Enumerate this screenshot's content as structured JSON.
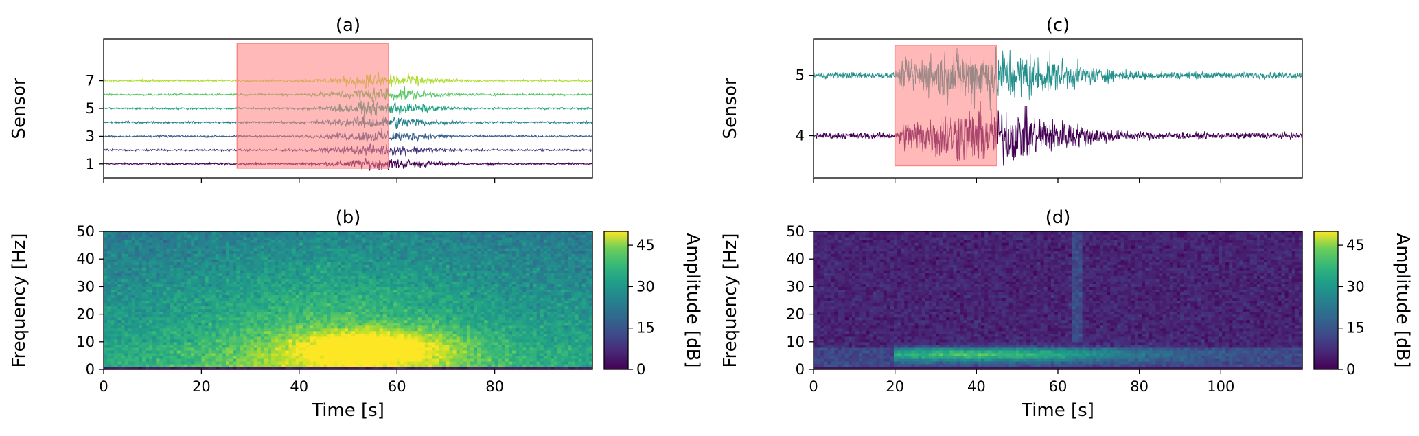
{
  "chart_data": [
    {
      "id": "a",
      "type": "line",
      "title": "(a)",
      "ylabel": "Sensor",
      "xlim": [
        0,
        100
      ],
      "ylim": [
        0,
        10
      ],
      "yticks": [
        1,
        3,
        5,
        7
      ],
      "xticks": [
        0,
        20,
        40,
        60,
        80
      ],
      "sensors": [
        1,
        2,
        3,
        4,
        5,
        6,
        7
      ],
      "highlight": {
        "x0": 27.3,
        "x1": 58.3,
        "y0": 0.7,
        "y1": 9.7,
        "color": "#ff8080"
      }
    },
    {
      "id": "b",
      "type": "heatmap",
      "title": "(b)",
      "xlabel": "Time [s]",
      "ylabel": "Frequency [Hz]",
      "xlim": [
        0,
        100
      ],
      "ylim": [
        0,
        50
      ],
      "xticks": [
        0,
        20,
        40,
        60,
        80
      ],
      "yticks": [
        0,
        10,
        20,
        30,
        40,
        50
      ],
      "colorbar": {
        "label": "Amplitude [dB]",
        "ticks": [
          0,
          15,
          30,
          45
        ],
        "range": [
          0,
          50
        ],
        "colormap": "viridis"
      }
    },
    {
      "id": "c",
      "type": "line",
      "title": "(c)",
      "ylabel": "Sensor",
      "xlim": [
        0,
        120
      ],
      "ylim": [
        3.3,
        5.6
      ],
      "yticks": [
        4,
        5
      ],
      "xticks": [
        0,
        20,
        40,
        60,
        80,
        100
      ],
      "sensors": [
        4,
        5
      ],
      "highlight": {
        "x0": 20,
        "x1": 45,
        "y0": 3.5,
        "y1": 5.5,
        "color": "#ff8080"
      }
    },
    {
      "id": "d",
      "type": "heatmap",
      "title": "(d)",
      "xlabel": "Time [s]",
      "ylabel": "Frequency [Hz]",
      "xlim": [
        0,
        120
      ],
      "ylim": [
        0,
        50
      ],
      "xticks": [
        0,
        20,
        40,
        60,
        80,
        100
      ],
      "yticks": [
        0,
        10,
        20,
        30,
        40,
        50
      ],
      "colorbar": {
        "label": "Amplitude [dB]",
        "ticks": [
          0,
          15,
          30,
          45
        ],
        "range": [
          0,
          50
        ],
        "colormap": "viridis"
      }
    }
  ]
}
